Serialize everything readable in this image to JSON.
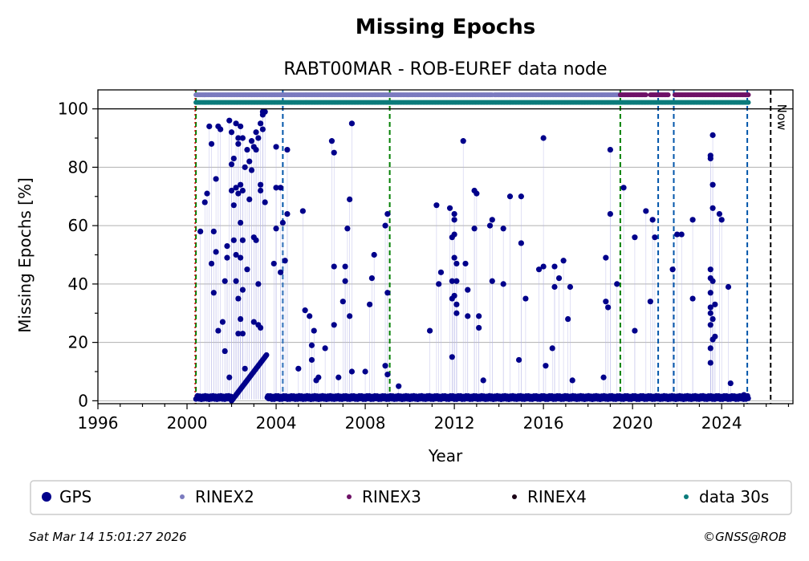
{
  "chart_data": {
    "type": "scatter",
    "title": "Missing Epochs",
    "subtitle": "RABT00MAR - ROB-EUREF data node",
    "xlabel": "Year",
    "ylabel": "Missing Epochs [%]",
    "xlim": [
      1996,
      2027.2
    ],
    "ylim": [
      -1,
      106.5
    ],
    "x_ticks": [
      1996,
      2000,
      2004,
      2008,
      2012,
      2016,
      2020,
      2024
    ],
    "y_ticks": [
      0,
      20,
      40,
      60,
      80,
      100
    ],
    "grid": true,
    "legend_position": "bottom",
    "now_label": "Now",
    "now_x": 2026.2,
    "colors": {
      "gps": "#00008b",
      "rinex2": "#7b7bbf",
      "rinex3": "#6e1166",
      "rinex4": "#1a0015",
      "data30s": "#0b7b7b",
      "green_line": "#007f00",
      "blue_line": "#0055aa",
      "red_line": "#cc0000",
      "now_line": "#000000"
    },
    "legend": [
      {
        "label": "GPS",
        "key": "gps"
      },
      {
        "label": "RINEX2",
        "key": "rinex2"
      },
      {
        "label": "RINEX3",
        "key": "rinex3"
      },
      {
        "label": "RINEX4",
        "key": "rinex4"
      },
      {
        "label": "data 30s",
        "key": "data30s"
      }
    ],
    "vertical_lines": {
      "red": [
        2000.4
      ],
      "green": [
        2000.4,
        2009.1,
        2019.45
      ],
      "blue": [
        2004.3,
        2021.15,
        2021.85,
        2025.15
      ],
      "now": [
        2026.2
      ]
    },
    "availability_bars": {
      "rinex2": {
        "y": 104.8,
        "segments": [
          [
            2000.4,
            2013.7
          ],
          [
            2013.8,
            2019.4
          ]
        ]
      },
      "rinex3": {
        "y": 104.8,
        "segments": [
          [
            2019.45,
            2020.6
          ],
          [
            2020.8,
            2021.6
          ],
          [
            2021.9,
            2025.2
          ]
        ]
      },
      "data30s": {
        "y": 102.2,
        "segments": [
          [
            2000.4,
            2025.2
          ]
        ]
      }
    },
    "series": [
      {
        "name": "GPS",
        "points": [
          [
            2000.6,
            58
          ],
          [
            2000.8,
            68
          ],
          [
            2000.9,
            71
          ],
          [
            2001.0,
            94
          ],
          [
            2001.1,
            88
          ],
          [
            2001.1,
            47
          ],
          [
            2001.2,
            58
          ],
          [
            2001.2,
            37
          ],
          [
            2001.3,
            76
          ],
          [
            2001.3,
            51
          ],
          [
            2001.4,
            94
          ],
          [
            2001.4,
            24
          ],
          [
            2001.5,
            93
          ],
          [
            2001.6,
            27
          ],
          [
            2001.7,
            41
          ],
          [
            2001.7,
            17
          ],
          [
            2001.8,
            53
          ],
          [
            2001.8,
            49
          ],
          [
            2001.9,
            96
          ],
          [
            2001.9,
            8
          ],
          [
            2002.0,
            92
          ],
          [
            2002.0,
            81
          ],
          [
            2002.0,
            72
          ],
          [
            2002.1,
            83
          ],
          [
            2002.1,
            67
          ],
          [
            2002.1,
            55
          ],
          [
            2002.2,
            95
          ],
          [
            2002.2,
            73
          ],
          [
            2002.2,
            50
          ],
          [
            2002.2,
            41
          ],
          [
            2002.3,
            90
          ],
          [
            2002.3,
            88
          ],
          [
            2002.3,
            71
          ],
          [
            2002.3,
            35
          ],
          [
            2002.3,
            23
          ],
          [
            2002.4,
            94
          ],
          [
            2002.4,
            74
          ],
          [
            2002.4,
            61
          ],
          [
            2002.4,
            49
          ],
          [
            2002.4,
            28
          ],
          [
            2002.5,
            90
          ],
          [
            2002.5,
            72
          ],
          [
            2002.5,
            55
          ],
          [
            2002.5,
            38
          ],
          [
            2002.5,
            23
          ],
          [
            2002.6,
            80
          ],
          [
            2002.6,
            11
          ],
          [
            2002.7,
            86
          ],
          [
            2002.7,
            45
          ],
          [
            2002.8,
            82
          ],
          [
            2002.8,
            69
          ],
          [
            2002.9,
            89
          ],
          [
            2002.9,
            79
          ],
          [
            2003.0,
            87
          ],
          [
            2003.0,
            56
          ],
          [
            2003.0,
            27
          ],
          [
            2003.1,
            92
          ],
          [
            2003.1,
            86
          ],
          [
            2003.1,
            55
          ],
          [
            2003.2,
            90
          ],
          [
            2003.2,
            40
          ],
          [
            2003.2,
            26
          ],
          [
            2003.3,
            74
          ],
          [
            2003.3,
            72
          ],
          [
            2003.3,
            25
          ],
          [
            2003.3,
            95
          ],
          [
            2003.4,
            98
          ],
          [
            2003.4,
            99
          ],
          [
            2003.4,
            93
          ],
          [
            2003.5,
            68
          ],
          [
            2003.5,
            99
          ],
          [
            2003.9,
            47
          ],
          [
            2004.0,
            59
          ],
          [
            2004.0,
            73
          ],
          [
            2004.0,
            87
          ],
          [
            2004.2,
            73
          ],
          [
            2004.2,
            44
          ],
          [
            2004.3,
            61
          ],
          [
            2004.4,
            48
          ],
          [
            2004.5,
            64
          ],
          [
            2004.5,
            86
          ],
          [
            2005.0,
            11
          ],
          [
            2005.2,
            65
          ],
          [
            2005.3,
            31
          ],
          [
            2005.5,
            29
          ],
          [
            2005.6,
            19
          ],
          [
            2005.6,
            14
          ],
          [
            2005.7,
            24
          ],
          [
            2005.8,
            7
          ],
          [
            2005.9,
            8
          ],
          [
            2006.2,
            18
          ],
          [
            2006.5,
            89
          ],
          [
            2006.6,
            85
          ],
          [
            2006.6,
            46
          ],
          [
            2006.6,
            26
          ],
          [
            2006.8,
            8
          ],
          [
            2007.0,
            34
          ],
          [
            2007.1,
            46
          ],
          [
            2007.1,
            41
          ],
          [
            2007.2,
            59
          ],
          [
            2007.3,
            29
          ],
          [
            2007.3,
            69
          ],
          [
            2007.4,
            95
          ],
          [
            2007.4,
            10
          ],
          [
            2008.0,
            10
          ],
          [
            2008.2,
            33
          ],
          [
            2008.3,
            42
          ],
          [
            2008.4,
            50
          ],
          [
            2008.9,
            12
          ],
          [
            2008.9,
            60
          ],
          [
            2009.0,
            64
          ],
          [
            2009.0,
            37
          ],
          [
            2009.0,
            9
          ],
          [
            2009.5,
            5
          ],
          [
            2010.9,
            24
          ],
          [
            2011.2,
            67
          ],
          [
            2011.3,
            40
          ],
          [
            2011.4,
            44
          ],
          [
            2011.8,
            66
          ],
          [
            2011.9,
            56
          ],
          [
            2011.9,
            41
          ],
          [
            2011.9,
            35
          ],
          [
            2011.9,
            15
          ],
          [
            2012.0,
            64
          ],
          [
            2012.0,
            62
          ],
          [
            2012.0,
            57
          ],
          [
            2012.0,
            49
          ],
          [
            2012.0,
            36
          ],
          [
            2012.1,
            47
          ],
          [
            2012.1,
            41
          ],
          [
            2012.1,
            33
          ],
          [
            2012.1,
            30
          ],
          [
            2012.4,
            89
          ],
          [
            2012.5,
            47
          ],
          [
            2012.6,
            29
          ],
          [
            2012.6,
            38
          ],
          [
            2012.9,
            59
          ],
          [
            2012.9,
            72
          ],
          [
            2013.0,
            71
          ],
          [
            2013.1,
            29
          ],
          [
            2013.1,
            25
          ],
          [
            2013.3,
            7
          ],
          [
            2013.6,
            60
          ],
          [
            2013.7,
            62
          ],
          [
            2013.7,
            41
          ],
          [
            2014.2,
            40
          ],
          [
            2014.2,
            59
          ],
          [
            2014.5,
            70
          ],
          [
            2014.9,
            14
          ],
          [
            2015.0,
            70
          ],
          [
            2015.0,
            54
          ],
          [
            2015.2,
            35
          ],
          [
            2015.8,
            45
          ],
          [
            2016.0,
            90
          ],
          [
            2016.0,
            46
          ],
          [
            2016.1,
            12
          ],
          [
            2016.4,
            18
          ],
          [
            2016.5,
            46
          ],
          [
            2016.5,
            39
          ],
          [
            2016.7,
            42
          ],
          [
            2016.9,
            48
          ],
          [
            2017.1,
            28
          ],
          [
            2017.2,
            39
          ],
          [
            2017.3,
            7
          ],
          [
            2018.7,
            8
          ],
          [
            2018.8,
            49
          ],
          [
            2018.8,
            34
          ],
          [
            2018.9,
            32
          ],
          [
            2019.0,
            64
          ],
          [
            2019.0,
            86
          ],
          [
            2019.3,
            40
          ],
          [
            2019.6,
            73
          ],
          [
            2020.1,
            24
          ],
          [
            2020.1,
            56
          ],
          [
            2020.6,
            65
          ],
          [
            2020.8,
            34
          ],
          [
            2020.9,
            62
          ],
          [
            2021.0,
            56
          ],
          [
            2021.8,
            45
          ],
          [
            2022.0,
            57
          ],
          [
            2022.2,
            57
          ],
          [
            2022.7,
            62
          ],
          [
            2022.7,
            35
          ],
          [
            2023.5,
            84
          ],
          [
            2023.5,
            83
          ],
          [
            2023.5,
            45
          ],
          [
            2023.5,
            42
          ],
          [
            2023.5,
            37
          ],
          [
            2023.5,
            32
          ],
          [
            2023.5,
            30
          ],
          [
            2023.5,
            26
          ],
          [
            2023.5,
            18
          ],
          [
            2023.5,
            13
          ],
          [
            2023.6,
            91
          ],
          [
            2023.6,
            74
          ],
          [
            2023.6,
            66
          ],
          [
            2023.6,
            41
          ],
          [
            2023.6,
            28
          ],
          [
            2023.6,
            21
          ],
          [
            2023.7,
            33
          ],
          [
            2023.7,
            22
          ],
          [
            2023.9,
            64
          ],
          [
            2024.0,
            62
          ],
          [
            2024.3,
            39
          ],
          [
            2024.4,
            6
          ],
          [
            2025.0,
            2
          ]
        ],
        "dense_baseline_x_ranges": [
          [
            2000.4,
            2002.0
          ],
          [
            2003.6,
            2025.2
          ]
        ],
        "ramp_segment": {
          "x": [
            2002.0,
            2003.6
          ],
          "y": [
            0,
            16
          ]
        },
        "baseline_y": 0.5
      }
    ]
  },
  "footer": {
    "timestamp": "Sat Mar 14 15:01:27 2026",
    "copyright": "©GNSS@ROB"
  }
}
